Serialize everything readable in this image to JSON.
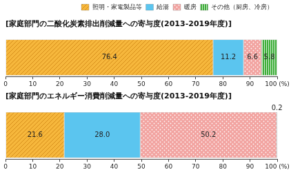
{
  "chart_data": [
    {
      "type": "bar",
      "orientation": "horizontal",
      "stacked": true,
      "title": "[家庭部門の二酸化炭素排出削減量への寄与度(2013-2019年度)]",
      "categories": [
        null
      ],
      "series": [
        {
          "name": "照明・家電製品等",
          "color": "#f6b73c",
          "values": [
            76.4
          ]
        },
        {
          "name": "給湯",
          "color": "#5bc5ef",
          "values": [
            11.2
          ]
        },
        {
          "name": "暖房",
          "color": "#f2a3a0",
          "values": [
            6.6
          ]
        },
        {
          "name": "その他（厨房、冷房）",
          "color": "#3fae3a",
          "values": [
            5.8
          ]
        }
      ],
      "xlim": [
        0,
        100
      ],
      "xticks": [
        0,
        10,
        20,
        30,
        40,
        50,
        60,
        70,
        80,
        90,
        {
          "value": 100,
          "label": "100 (%)"
        }
      ],
      "grid": false,
      "legend": "top right",
      "data_labels": true,
      "tick_labels": "x"
    },
    {
      "type": "bar",
      "orientation": "horizontal",
      "stacked": true,
      "title": "[家庭部門のエネルギー消費削減量への寄与度(2013-2019年度)]",
      "categories": [
        null
      ],
      "series": [
        {
          "name": "照明・家電製品等",
          "color": "#f6b73c",
          "values": [
            21.6
          ]
        },
        {
          "name": "給湯",
          "color": "#5bc5ef",
          "values": [
            28.0
          ],
          "value_labels": [
            "28.0"
          ]
        },
        {
          "name": "暖房",
          "color": "#f2a3a0",
          "values": [
            50.2
          ]
        },
        {
          "name": "その他（厨房、冷房）",
          "color": "#3fae3a",
          "values": [
            0.2
          ]
        }
      ],
      "xlim": [
        0,
        100
      ],
      "xticks": [
        0,
        10,
        20,
        30,
        40,
        50,
        60,
        70,
        80,
        90,
        {
          "value": 100,
          "label": "100 (%)"
        }
      ],
      "grid": false,
      "data_labels": true,
      "tick_labels": "x"
    }
  ]
}
